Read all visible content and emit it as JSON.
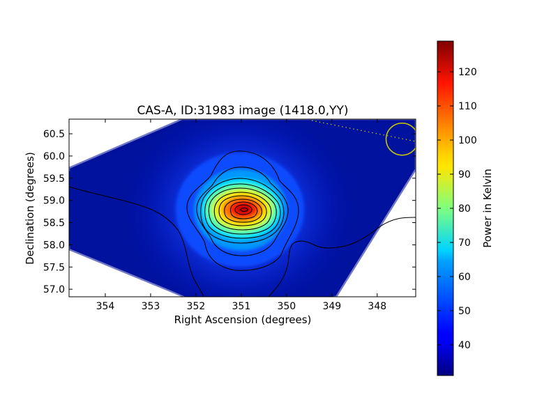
{
  "chart_data": {
    "type": "heatmap",
    "title": "CAS-A, ID:31983 image (1418.0,YY)",
    "xlabel": "Right Ascension (degrees)",
    "ylabel": "Declination (degrees)",
    "xlim": [
      354.8,
      347.15
    ],
    "ylim": [
      56.83,
      60.83
    ],
    "x_ticks": [
      {
        "value": 354,
        "label": "354"
      },
      {
        "value": 353,
        "label": "353"
      },
      {
        "value": 352,
        "label": "352"
      },
      {
        "value": 351,
        "label": "351"
      },
      {
        "value": 350,
        "label": "350"
      },
      {
        "value": 349,
        "label": "349"
      },
      {
        "value": 348,
        "label": "348"
      }
    ],
    "y_ticks": [
      {
        "value": 57.0,
        "label": "57.0"
      },
      {
        "value": 57.5,
        "label": "57.5"
      },
      {
        "value": 58.0,
        "label": "58.0"
      },
      {
        "value": 58.5,
        "label": "58.5"
      },
      {
        "value": 59.0,
        "label": "59.0"
      },
      {
        "value": 59.5,
        "label": "59.5"
      },
      {
        "value": 60.0,
        "label": "60.0"
      },
      {
        "value": 60.5,
        "label": "60.5"
      }
    ],
    "source": {
      "ra": 350.85,
      "dec": 58.82,
      "peak_value": 128
    },
    "beam_marker": {
      "ra": 347.45,
      "dec": 60.38
    },
    "colorbar": {
      "label": "Power in Kelvin",
      "min": 31,
      "max": 129,
      "colormap": "jet",
      "ticks": [
        {
          "value": 40,
          "label": "40"
        },
        {
          "value": 50,
          "label": "50"
        },
        {
          "value": 60,
          "label": "60"
        },
        {
          "value": 70,
          "label": "70"
        },
        {
          "value": 80,
          "label": "80"
        },
        {
          "value": 90,
          "label": "90"
        },
        {
          "value": 100,
          "label": "100"
        },
        {
          "value": 110,
          "label": "110"
        },
        {
          "value": 120,
          "label": "120"
        }
      ]
    }
  }
}
